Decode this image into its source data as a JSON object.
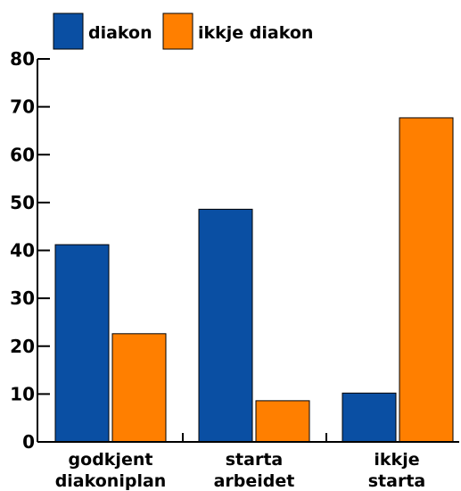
{
  "chart_data": {
    "type": "bar",
    "categories": [
      [
        "godkjent",
        "diakoniplan"
      ],
      [
        "starta",
        "arbeidet"
      ],
      [
        "ikkje",
        "starta"
      ]
    ],
    "series": [
      {
        "name": "diakon",
        "values": [
          41.2,
          48.6,
          10.2
        ],
        "color": "#0a4fa3"
      },
      {
        "name": "ikkje diakon",
        "values": [
          22.6,
          8.6,
          67.7
        ],
        "color": "#ff7f00"
      }
    ],
    "y_ticks": [
      0,
      10,
      20,
      30,
      40,
      50,
      60,
      70,
      80
    ],
    "ylim": [
      0,
      80
    ],
    "grid": false,
    "legend_position": "top-left"
  }
}
